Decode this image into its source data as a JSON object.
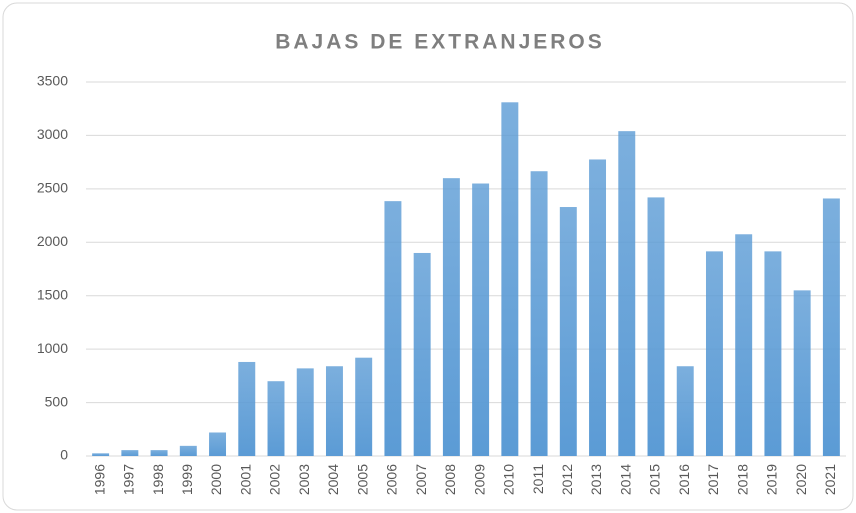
{
  "chart_data": {
    "type": "bar",
    "title": "BAJAS DE EXTRANJEROS",
    "categories": [
      "1996",
      "1997",
      "1998",
      "1999",
      "2000",
      "2001",
      "2002",
      "2003",
      "2004",
      "2005",
      "2006",
      "2007",
      "2008",
      "2009",
      "2010",
      "2011",
      "2012",
      "2013",
      "2014",
      "2015",
      "2016",
      "2017",
      "2018",
      "2019",
      "2020",
      "2021"
    ],
    "values": [
      25,
      55,
      55,
      95,
      220,
      880,
      700,
      820,
      840,
      920,
      2385,
      1900,
      2600,
      2550,
      3310,
      2665,
      2330,
      2775,
      3040,
      2420,
      840,
      1915,
      2075,
      1915,
      1550,
      2410
    ],
    "color": "#5b9bd5",
    "ylim": [
      0,
      3500
    ],
    "yticks": [
      0,
      500,
      1000,
      1500,
      2000,
      2500,
      3000,
      3500
    ],
    "grid": true
  }
}
